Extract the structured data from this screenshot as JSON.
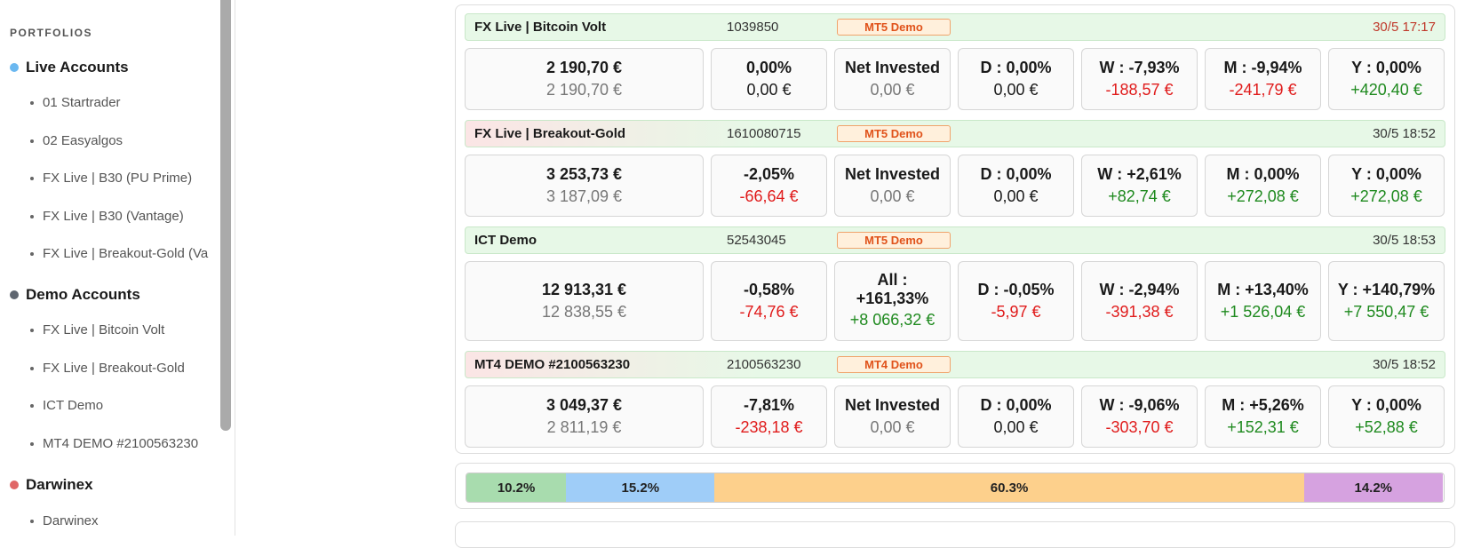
{
  "sidebar": {
    "title": "PORTFOLIOS",
    "groups": [
      {
        "name": "Live Accounts",
        "color": "#6bb8f0",
        "items": [
          "01 Startrader",
          "02 Easyalgos",
          "FX Live | B30 (PU Prime)",
          "FX Live | B30 (Vantage)",
          "FX Live | Breakout-Gold (Va"
        ]
      },
      {
        "name": "Demo Accounts",
        "color": "#5f6670",
        "items": [
          "FX Live | Bitcoin Volt",
          "FX Live | Breakout-Gold",
          "ICT Demo",
          "MT4 DEMO #2100563230"
        ]
      },
      {
        "name": "Darwinex",
        "color": "#e06666",
        "items": [
          "Darwinex"
        ]
      }
    ]
  },
  "accounts": [
    {
      "name": "FX Live | Bitcoin Volt",
      "id": "1039850",
      "badge": "MT5 Demo",
      "time": "30/5 17:17",
      "equity": "2 190,70 €",
      "balance": "2 190,70 €",
      "pct": "0,00%",
      "pnl": "0,00 €",
      "invested_label": "Net Invested",
      "invested": "0,00 €",
      "d_label": "D : 0,00%",
      "d_value": "0,00 €",
      "w_label": "W : -7,93%",
      "w_value": "-188,57 €",
      "m_label": "M : -9,94%",
      "m_value": "-241,79 €",
      "y_label": "Y : 0,00%",
      "y_value": "+420,40 €"
    },
    {
      "name": "FX Live | Breakout-Gold",
      "id": "1610080715",
      "badge": "MT5 Demo",
      "time": "30/5 18:52",
      "equity": "3 253,73 €",
      "balance": "3 187,09 €",
      "pct": "-2,05%",
      "pnl": "-66,64 €",
      "invested_label": "Net Invested",
      "invested": "0,00 €",
      "d_label": "D : 0,00%",
      "d_value": "0,00 €",
      "w_label": "W : +2,61%",
      "w_value": "+82,74 €",
      "m_label": "M : 0,00%",
      "m_value": "+272,08 €",
      "y_label": "Y : 0,00%",
      "y_value": "+272,08 €"
    },
    {
      "name": "ICT Demo",
      "id": "52543045",
      "badge": "MT5 Demo",
      "time": "30/5 18:53",
      "equity": "12 913,31 €",
      "balance": "12 838,55 €",
      "pct": "-0,58%",
      "pnl": "-74,76 €",
      "invested_label_1": "All :",
      "invested_label_2": "+161,33%",
      "invested": "+8 066,32 €",
      "d_label": "D : -0,05%",
      "d_value": "-5,97 €",
      "w_label": "W : -2,94%",
      "w_value": "-391,38 €",
      "m_label": "M : +13,40%",
      "m_value": "+1 526,04 €",
      "y_label": "Y : +140,79%",
      "y_value": "+7 550,47 €"
    },
    {
      "name": "MT4 DEMO #2100563230",
      "id": "2100563230",
      "badge": "MT4 Demo",
      "time": "30/5 18:52",
      "equity": "3 049,37 €",
      "balance": "2 811,19 €",
      "pct": "-7,81%",
      "pnl": "-238,18 €",
      "invested_label": "Net Invested",
      "invested": "0,00 €",
      "d_label": "D : 0,00%",
      "d_value": "0,00 €",
      "w_label": "W : -9,06%",
      "w_value": "-303,70 €",
      "m_label": "M : +5,26%",
      "m_value": "+152,31 €",
      "y_label": "Y : 0,00%",
      "y_value": "+52,88 €"
    }
  ],
  "allocation": [
    {
      "label": "10.2%",
      "value": 10.2,
      "color": "#a8dcae"
    },
    {
      "label": "15.2%",
      "value": 15.2,
      "color": "#9fcdf8"
    },
    {
      "label": "60.3%",
      "value": 60.3,
      "color": "#fdd08c"
    },
    {
      "label": "14.2%",
      "value": 14.2,
      "color": "#d6a2e0"
    }
  ]
}
